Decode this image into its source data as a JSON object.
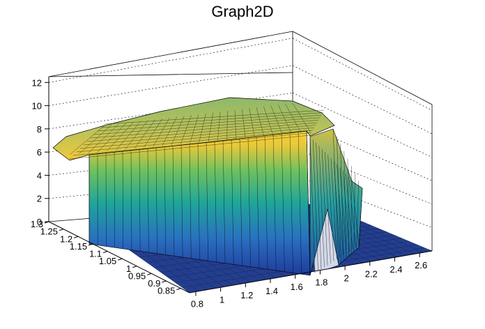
{
  "chart_data": {
    "type": "surface",
    "title": "Graph2D",
    "xlabel": "",
    "ylabel": "",
    "zlabel": "",
    "x_ticks": [
      "0.8",
      "1",
      "1.2",
      "1.4",
      "1.6",
      "1.8",
      "2",
      "2.2",
      "2.4",
      "2.6"
    ],
    "y_ticks": [
      "0.85",
      "0.9",
      "0.95",
      "1",
      "1.05",
      "1.1",
      "1.15",
      "1.2",
      "1.25",
      "1.3"
    ],
    "z_ticks": [
      "0",
      "2",
      "4",
      "6",
      "8",
      "10",
      "12"
    ],
    "xlim": [
      0.75,
      2.7
    ],
    "ylim": [
      0.82,
      1.3
    ],
    "zlim": [
      0,
      12.5
    ],
    "grid": true,
    "colormap": "viridis-like (blue to yellow)",
    "surface_x_extent": [
      0.9,
      1.95
    ],
    "surface_plateau_z": 6.5,
    "surface_peak_z": 8.0,
    "flat_region_z": 0
  }
}
